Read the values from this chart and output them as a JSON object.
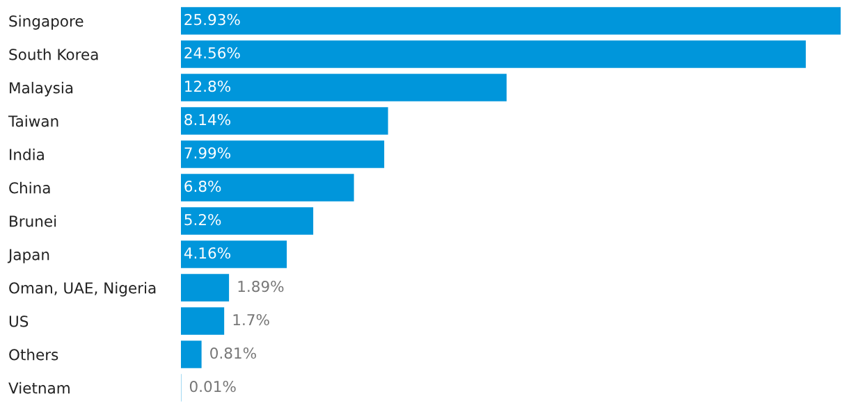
{
  "chart_data": {
    "type": "bar",
    "orientation": "horizontal",
    "color": "#0096db",
    "categories": [
      "Singapore",
      "South Korea",
      "Malaysia",
      "Taiwan",
      "India",
      "China",
      "Brunei",
      "Japan",
      "Oman, UAE, Nigeria",
      "US",
      "Others",
      "Vietnam"
    ],
    "values": [
      25.93,
      24.56,
      12.8,
      8.14,
      7.99,
      6.8,
      5.2,
      4.16,
      1.89,
      1.7,
      0.81,
      0.01
    ],
    "value_labels": [
      "25.93%",
      "24.56%",
      "12.8%",
      "8.14%",
      "7.99%",
      "6.8%",
      "5.2%",
      "4.16%",
      "1.89%",
      "1.7%",
      "0.81%",
      "0.01%"
    ],
    "grid": false,
    "legend": false,
    "tick_labels": "y"
  }
}
